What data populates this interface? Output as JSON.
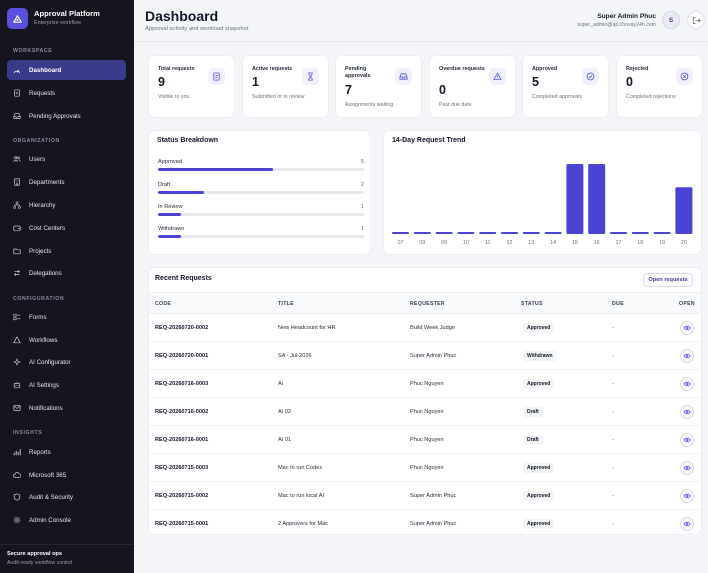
{
  "brand": {
    "title": "Approval Platform",
    "subtitle": "Enterprise workflow"
  },
  "sidebar": {
    "sections": [
      {
        "label": "WORKSPACE",
        "items": [
          {
            "label": "Dashboard",
            "icon": "dashboard-icon",
            "active": true
          },
          {
            "label": "Requests",
            "icon": "document-icon"
          },
          {
            "label": "Pending Approvals",
            "icon": "inbox-icon"
          }
        ]
      },
      {
        "label": "ORGANIZATION",
        "items": [
          {
            "label": "Users",
            "icon": "users-icon"
          },
          {
            "label": "Departments",
            "icon": "building-icon"
          },
          {
            "label": "Hierarchy",
            "icon": "hierarchy-icon"
          },
          {
            "label": "Cost Centers",
            "icon": "wallet-icon"
          },
          {
            "label": "Projects",
            "icon": "folder-icon"
          },
          {
            "label": "Delegations",
            "icon": "swap-icon"
          }
        ]
      },
      {
        "label": "CONFIGURATION",
        "items": [
          {
            "label": "Forms",
            "icon": "form-icon"
          },
          {
            "label": "Workflows",
            "icon": "workflow-icon"
          },
          {
            "label": "AI Configurator",
            "icon": "sparkle-icon"
          },
          {
            "label": "AI Settings",
            "icon": "robot-icon"
          },
          {
            "label": "Notifications",
            "icon": "mail-icon"
          }
        ]
      },
      {
        "label": "INSIGHTS",
        "items": [
          {
            "label": "Reports",
            "icon": "bar-chart-icon"
          },
          {
            "label": "Microsoft 365",
            "icon": "cloud-icon"
          },
          {
            "label": "Audit & Security",
            "icon": "shield-icon"
          },
          {
            "label": "Admin Console",
            "icon": "gear-icon"
          }
        ]
      }
    ],
    "footer": {
      "title": "Secure approval ops",
      "subtitle": "Audit-ready workflow control"
    }
  },
  "header": {
    "title": "Dashboard",
    "subtitle": "Approval activity and workload snapshot",
    "user_name": "Super Admin Phuc",
    "user_email": "super_admin@ap.chovay24h.com",
    "avatar_letter": "S"
  },
  "stats": [
    {
      "label": "Total requests",
      "value": "9",
      "hint": "Visible to you",
      "icon": "document-icon"
    },
    {
      "label": "Active requests",
      "value": "1",
      "hint": "Submitted or in review",
      "icon": "hourglass-icon"
    },
    {
      "label": "Pending approvals",
      "value": "7",
      "hint": "Assignments waiting",
      "icon": "inbox-icon"
    },
    {
      "label": "Overdue requests",
      "value": "0",
      "hint": "Past due date",
      "icon": "warning-icon"
    },
    {
      "label": "Approved",
      "value": "5",
      "hint": "Completed approvals",
      "icon": "check-circle-icon"
    },
    {
      "label": "Rejected",
      "value": "0",
      "hint": "Completed rejections",
      "icon": "x-circle-icon"
    }
  ],
  "status_breakdown": {
    "title": "Status Breakdown",
    "items": [
      {
        "label": "Approved",
        "count": "5",
        "fraction": 0.556
      },
      {
        "label": "Draft",
        "count": "2",
        "fraction": 0.222
      },
      {
        "label": "In Review",
        "count": "1",
        "fraction": 0.111
      },
      {
        "label": "Withdrawn",
        "count": "1",
        "fraction": 0.111
      }
    ]
  },
  "chart_data": {
    "type": "bar",
    "title": "14-Day Request Trend",
    "categories": [
      "07",
      "08",
      "09",
      "10",
      "11",
      "12",
      "13",
      "14",
      "15",
      "16",
      "17",
      "18",
      "19",
      "20"
    ],
    "values": [
      0,
      0,
      0,
      0,
      0,
      0,
      0,
      0,
      3,
      3,
      0,
      0,
      0,
      2
    ],
    "ylim": [
      0,
      3
    ],
    "bar_color": "#4b43d6"
  },
  "recent": {
    "title": "Recent Requests",
    "open_button": "Open requests",
    "columns": [
      "CODE",
      "TITLE",
      "REQUESTER",
      "STATUS",
      "DUE",
      "OPEN"
    ],
    "rows": [
      {
        "code": "REQ-20260720-0002",
        "title": "New Headcount for HR",
        "requester": "Build Week Judge",
        "status": "Approved",
        "due": "-"
      },
      {
        "code": "REQ-20260720-0001",
        "title": "SA - Jul-2026",
        "requester": "Super Admin Phuc",
        "status": "Withdrawn",
        "due": "-"
      },
      {
        "code": "REQ-20260716-0003",
        "title": "Ai",
        "requester": "Phuc Nguyen",
        "status": "Approved",
        "due": "-"
      },
      {
        "code": "REQ-20260716-0002",
        "title": "AI 02",
        "requester": "Phuc Nguyen",
        "status": "Draft",
        "due": "-"
      },
      {
        "code": "REQ-20260716-0001",
        "title": "AI 01",
        "requester": "Phuc Nguyen",
        "status": "Draft",
        "due": "-"
      },
      {
        "code": "REQ-20260715-0003",
        "title": "Mac to run Codex",
        "requester": "Phuc Nguyen",
        "status": "Approved",
        "due": "-"
      },
      {
        "code": "REQ-20260715-0002",
        "title": "Mac to run local AI",
        "requester": "Super Admin Phuc",
        "status": "Approved",
        "due": "-"
      },
      {
        "code": "REQ-20260715-0001",
        "title": "2 Approvers for Mac",
        "requester": "Super Admin Phuc",
        "status": "Approved",
        "due": "-"
      }
    ]
  },
  "colors": {
    "accent": "#4b43d6",
    "sidebar_bg": "#15151f",
    "active_nav": "#3a3a8a"
  }
}
